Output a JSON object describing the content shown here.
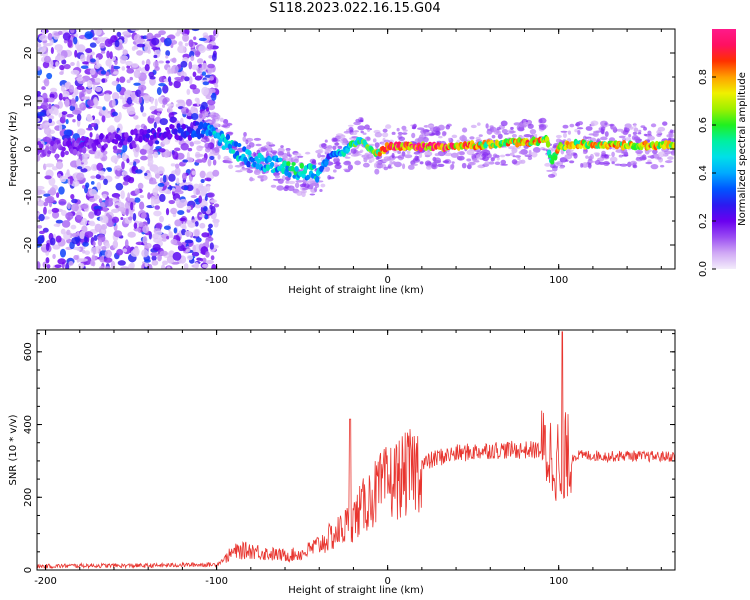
{
  "title": "S118.2023.022.16.15.G04",
  "chart_data": [
    {
      "type": "heatmap",
      "xlabel": "Height of straight line (km)",
      "ylabel": "Frequency (Hz)",
      "xlim": [
        -205,
        168
      ],
      "ylim": [
        -25,
        25
      ],
      "xticks": [
        -200,
        -100,
        0,
        100
      ],
      "yticks": [
        -20,
        -10,
        0,
        10,
        20
      ],
      "colorbar": {
        "label": "Normalized spectral amplitude",
        "range": [
          0,
          1
        ],
        "ticks": [
          "0.0",
          "0.2",
          "0.4",
          "0.6",
          "0.8"
        ],
        "colors": [
          "#f3ecfb",
          "#d0a8f5",
          "#9a4cf2",
          "#6a00f0",
          "#2c1af0",
          "#0055ff",
          "#00aaff",
          "#00e0e8",
          "#00f0a0",
          "#20f020",
          "#a0f000",
          "#f0f000",
          "#ffa000",
          "#ff3000",
          "#ff1060",
          "#ff1a8a"
        ]
      },
      "ridge": {
        "description_points_x": [
          -200,
          -150,
          -110,
          -100,
          -90,
          -80,
          -70,
          -60,
          -50,
          -40,
          -35,
          -30,
          -25,
          -20,
          -15,
          -10,
          -5,
          0,
          20,
          40,
          60,
          80,
          90,
          93,
          96,
          100,
          110,
          130,
          150,
          168
        ],
        "frequency_hz": [
          0,
          2,
          4,
          3,
          0,
          -2,
          -3,
          -4,
          -5,
          -5,
          -2,
          -1,
          -0.5,
          1,
          2,
          0,
          -1,
          0.5,
          0.5,
          0.5,
          1,
          1.5,
          1.5,
          2,
          -3,
          0.5,
          1,
          0.8,
          0.8,
          0.8
        ],
        "amplitude": [
          0.15,
          0.2,
          0.3,
          0.45,
          0.45,
          0.4,
          0.45,
          0.5,
          0.5,
          0.45,
          0.3,
          0.4,
          0.5,
          0.55,
          0.55,
          0.6,
          0.7,
          0.9,
          0.95,
          0.85,
          0.7,
          0.75,
          0.8,
          0.6,
          0.5,
          0.8,
          0.7,
          0.75,
          0.75,
          0.7
        ]
      }
    },
    {
      "type": "line",
      "xlabel": "Height of straight line (km)",
      "ylabel": "SNR (10 * v/v)",
      "xlim": [
        -205,
        168
      ],
      "ylim": [
        0,
        660
      ],
      "xticks": [
        -200,
        -100,
        0,
        100
      ],
      "yticks": [
        0,
        200,
        400,
        600
      ],
      "series": [
        {
          "color": "#e8352f",
          "x": [
            -205,
            -180,
            -160,
            -140,
            -120,
            -100,
            -90,
            -80,
            -70,
            -60,
            -50,
            -40,
            -30,
            -20,
            -10,
            0,
            10,
            20,
            30,
            40,
            50,
            60,
            70,
            80,
            90,
            95,
            100,
            102,
            104,
            106,
            110,
            120,
            130,
            140,
            150,
            160,
            168
          ],
          "y": [
            10,
            12,
            12,
            12,
            14,
            15,
            50,
            55,
            45,
            40,
            45,
            70,
            100,
            140,
            200,
            240,
            260,
            290,
            310,
            320,
            325,
            330,
            330,
            330,
            330,
            320,
            300,
            150,
            320,
            310,
            315,
            315,
            312,
            315,
            312,
            312,
            312
          ]
        }
      ],
      "annotations": [
        {
          "x": -22,
          "y": 415,
          "text": ""
        },
        {
          "x": 102,
          "y": 655,
          "text": ""
        }
      ]
    }
  ]
}
